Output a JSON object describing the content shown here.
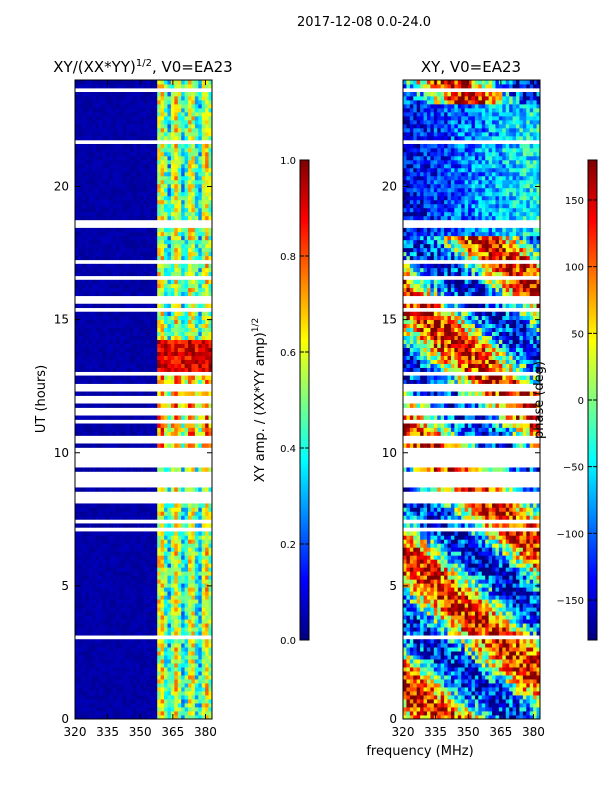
{
  "suptitle": "2017-12-08 0.0-24.0",
  "xlabel_shared": "frequency (MHz)",
  "colormap": [
    "#00007f",
    "#0000ff",
    "#007fff",
    "#00ffff",
    "#7fff7f",
    "#ffff00",
    "#ff7f00",
    "#ff0000",
    "#7f0000"
  ],
  "chart_data": [
    {
      "type": "heatmap",
      "title": "XY/(XX*YY)^(1/2), V0=EA23",
      "title_main": "XY/(XX*YY)",
      "title_sup": "1/2",
      "title_suffix": ", V0=EA23",
      "xlabel": "",
      "ylabel": "UT (hours)",
      "xlim": [
        320,
        383
      ],
      "ylim": [
        0,
        24
      ],
      "xticks": [
        320,
        335,
        350,
        365,
        380
      ],
      "yticks": [
        0,
        5,
        10,
        15,
        20
      ],
      "colorbar": {
        "label": "XY amp. / (XX*YY amp)^(1/2)",
        "label_main": "XY amp. / (XX*YY amp)",
        "label_sup": "1/2",
        "range": [
          0.0,
          1.0
        ],
        "ticks": [
          0.0,
          0.2,
          0.4,
          0.6,
          0.8,
          1.0
        ],
        "tick_labels": [
          "0.0",
          "0.2",
          "0.4",
          "0.6",
          "0.8",
          "1.0"
        ]
      },
      "description": "Low amplitude below ~357 MHz; bands of higher amplitude around 358-382 MHz; peak near 13.5 h."
    },
    {
      "type": "heatmap",
      "title": "XY, V0=EA23",
      "xlabel": "frequency (MHz)",
      "ylabel": "",
      "xlim": [
        320,
        383
      ],
      "ylim": [
        0,
        24
      ],
      "xticks": [
        320,
        335,
        350,
        365,
        380
      ],
      "yticks": [
        0,
        5,
        10,
        15,
        20
      ],
      "colorbar": {
        "label": "phase (deg)",
        "range": [
          -180,
          180
        ],
        "ticks": [
          -150,
          -100,
          -50,
          0,
          50,
          100,
          150
        ],
        "tick_labels": [
          "−150",
          "−100",
          "−50",
          "0",
          "50",
          "100",
          "150"
        ]
      },
      "description": "Phase varies widely across the full band."
    }
  ]
}
